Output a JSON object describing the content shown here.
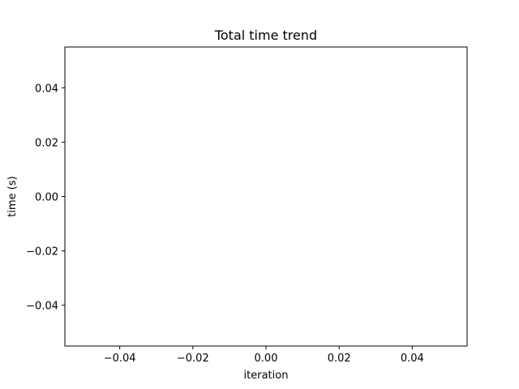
{
  "chart_data": {
    "type": "line",
    "title": "Total time trend",
    "xlabel": "iteration",
    "ylabel": "time (s)",
    "xlim": [
      -0.055,
      0.055
    ],
    "ylim": [
      -0.055,
      0.055
    ],
    "x_ticks": [
      -0.04,
      -0.02,
      0.0,
      0.02,
      0.04
    ],
    "y_ticks": [
      -0.04,
      -0.02,
      0.0,
      0.02,
      0.04
    ],
    "x_tick_labels": [
      "−0.04",
      "−0.02",
      "0.00",
      "0.02",
      "0.04"
    ],
    "y_tick_labels": [
      "−0.04",
      "−0.02",
      "0.00",
      "0.02",
      "0.04"
    ],
    "series": [
      {
        "x": [],
        "y": []
      }
    ],
    "grid": false,
    "legend": false
  }
}
